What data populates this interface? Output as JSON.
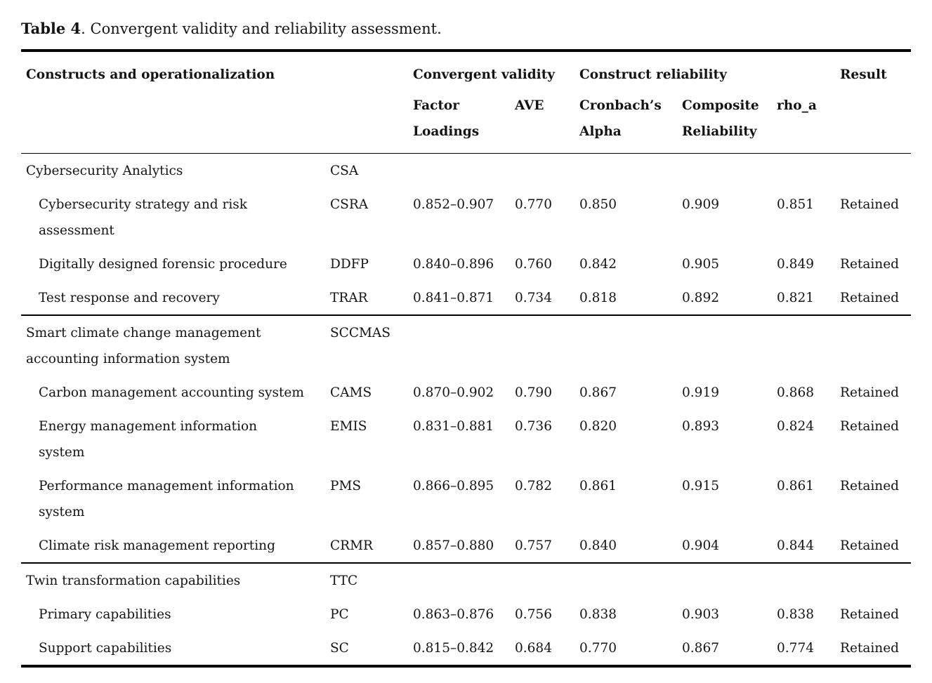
{
  "caption": {
    "label": "Table 4",
    "text": ". Convergent validity and reliability assessment."
  },
  "table": {
    "header": {
      "constructs": "Constructs and operationalization",
      "convergent_validity": "Convergent validity",
      "construct_reliability": "Construct reliability",
      "result": "Result",
      "factor_loadings": "Factor Loadings",
      "ave": "AVE",
      "cronbachs_alpha": "Cronbach’s Alpha",
      "composite_reliability": "Composite Reliability",
      "rho_a": "rho_a"
    },
    "sections": [
      {
        "name": "Cybersecurity Analytics",
        "abbr": "CSA",
        "items": [
          {
            "name": "Cybersecurity strategy and risk\nassessment",
            "abbr": "CSRA",
            "factor_loadings": "0.852–0.907",
            "ave": "0.770",
            "cronbachs_alpha": "0.850",
            "composite_reliability": "0.909",
            "rho_a": "0.851",
            "result": "Retained"
          },
          {
            "name": "Digitally designed forensic procedure",
            "abbr": "DDFP",
            "factor_loadings": "0.840–0.896",
            "ave": "0.760",
            "cronbachs_alpha": "0.842",
            "composite_reliability": "0.905",
            "rho_a": "0.849",
            "result": "Retained"
          },
          {
            "name": "Test response and recovery",
            "abbr": "TRAR",
            "factor_loadings": "0.841–0.871",
            "ave": "0.734",
            "cronbachs_alpha": "0.818",
            "composite_reliability": "0.892",
            "rho_a": "0.821",
            "result": "Retained"
          }
        ]
      },
      {
        "name": "Smart climate change management\naccounting information system",
        "abbr": "SCCMAS",
        "items": [
          {
            "name": "Carbon management accounting system",
            "abbr": "CAMS",
            "factor_loadings": "0.870–0.902",
            "ave": "0.790",
            "cronbachs_alpha": "0.867",
            "composite_reliability": "0.919",
            "rho_a": "0.868",
            "result": "Retained"
          },
          {
            "name": "Energy management information\nsystem",
            "abbr": "EMIS",
            "factor_loadings": "0.831–0.881",
            "ave": "0.736",
            "cronbachs_alpha": "0.820",
            "composite_reliability": "0.893",
            "rho_a": "0.824",
            "result": "Retained"
          },
          {
            "name": "Performance management information\nsystem",
            "abbr": "PMS",
            "factor_loadings": "0.866–0.895",
            "ave": "0.782",
            "cronbachs_alpha": "0.861",
            "composite_reliability": "0.915",
            "rho_a": "0.861",
            "result": "Retained"
          },
          {
            "name": "Climate risk management reporting",
            "abbr": "CRMR",
            "factor_loadings": "0.857–0.880",
            "ave": "0.757",
            "cronbachs_alpha": "0.840",
            "composite_reliability": "0.904",
            "rho_a": "0.844",
            "result": "Retained"
          }
        ]
      },
      {
        "name": "Twin transformation capabilities",
        "abbr": "TTC",
        "items": [
          {
            "name": "Primary capabilities",
            "abbr": "PC",
            "factor_loadings": "0.863–0.876",
            "ave": "0.756",
            "cronbachs_alpha": "0.838",
            "composite_reliability": "0.903",
            "rho_a": "0.838",
            "result": "Retained"
          },
          {
            "name": "Support capabilities",
            "abbr": "SC",
            "factor_loadings": "0.815–0.842",
            "ave": "0.684",
            "cronbachs_alpha": "0.770",
            "composite_reliability": "0.867",
            "rho_a": "0.774",
            "result": "Retained"
          }
        ]
      }
    ]
  },
  "colors": {
    "text": "#141414",
    "background": "#ffffff",
    "rule": "#000000"
  }
}
